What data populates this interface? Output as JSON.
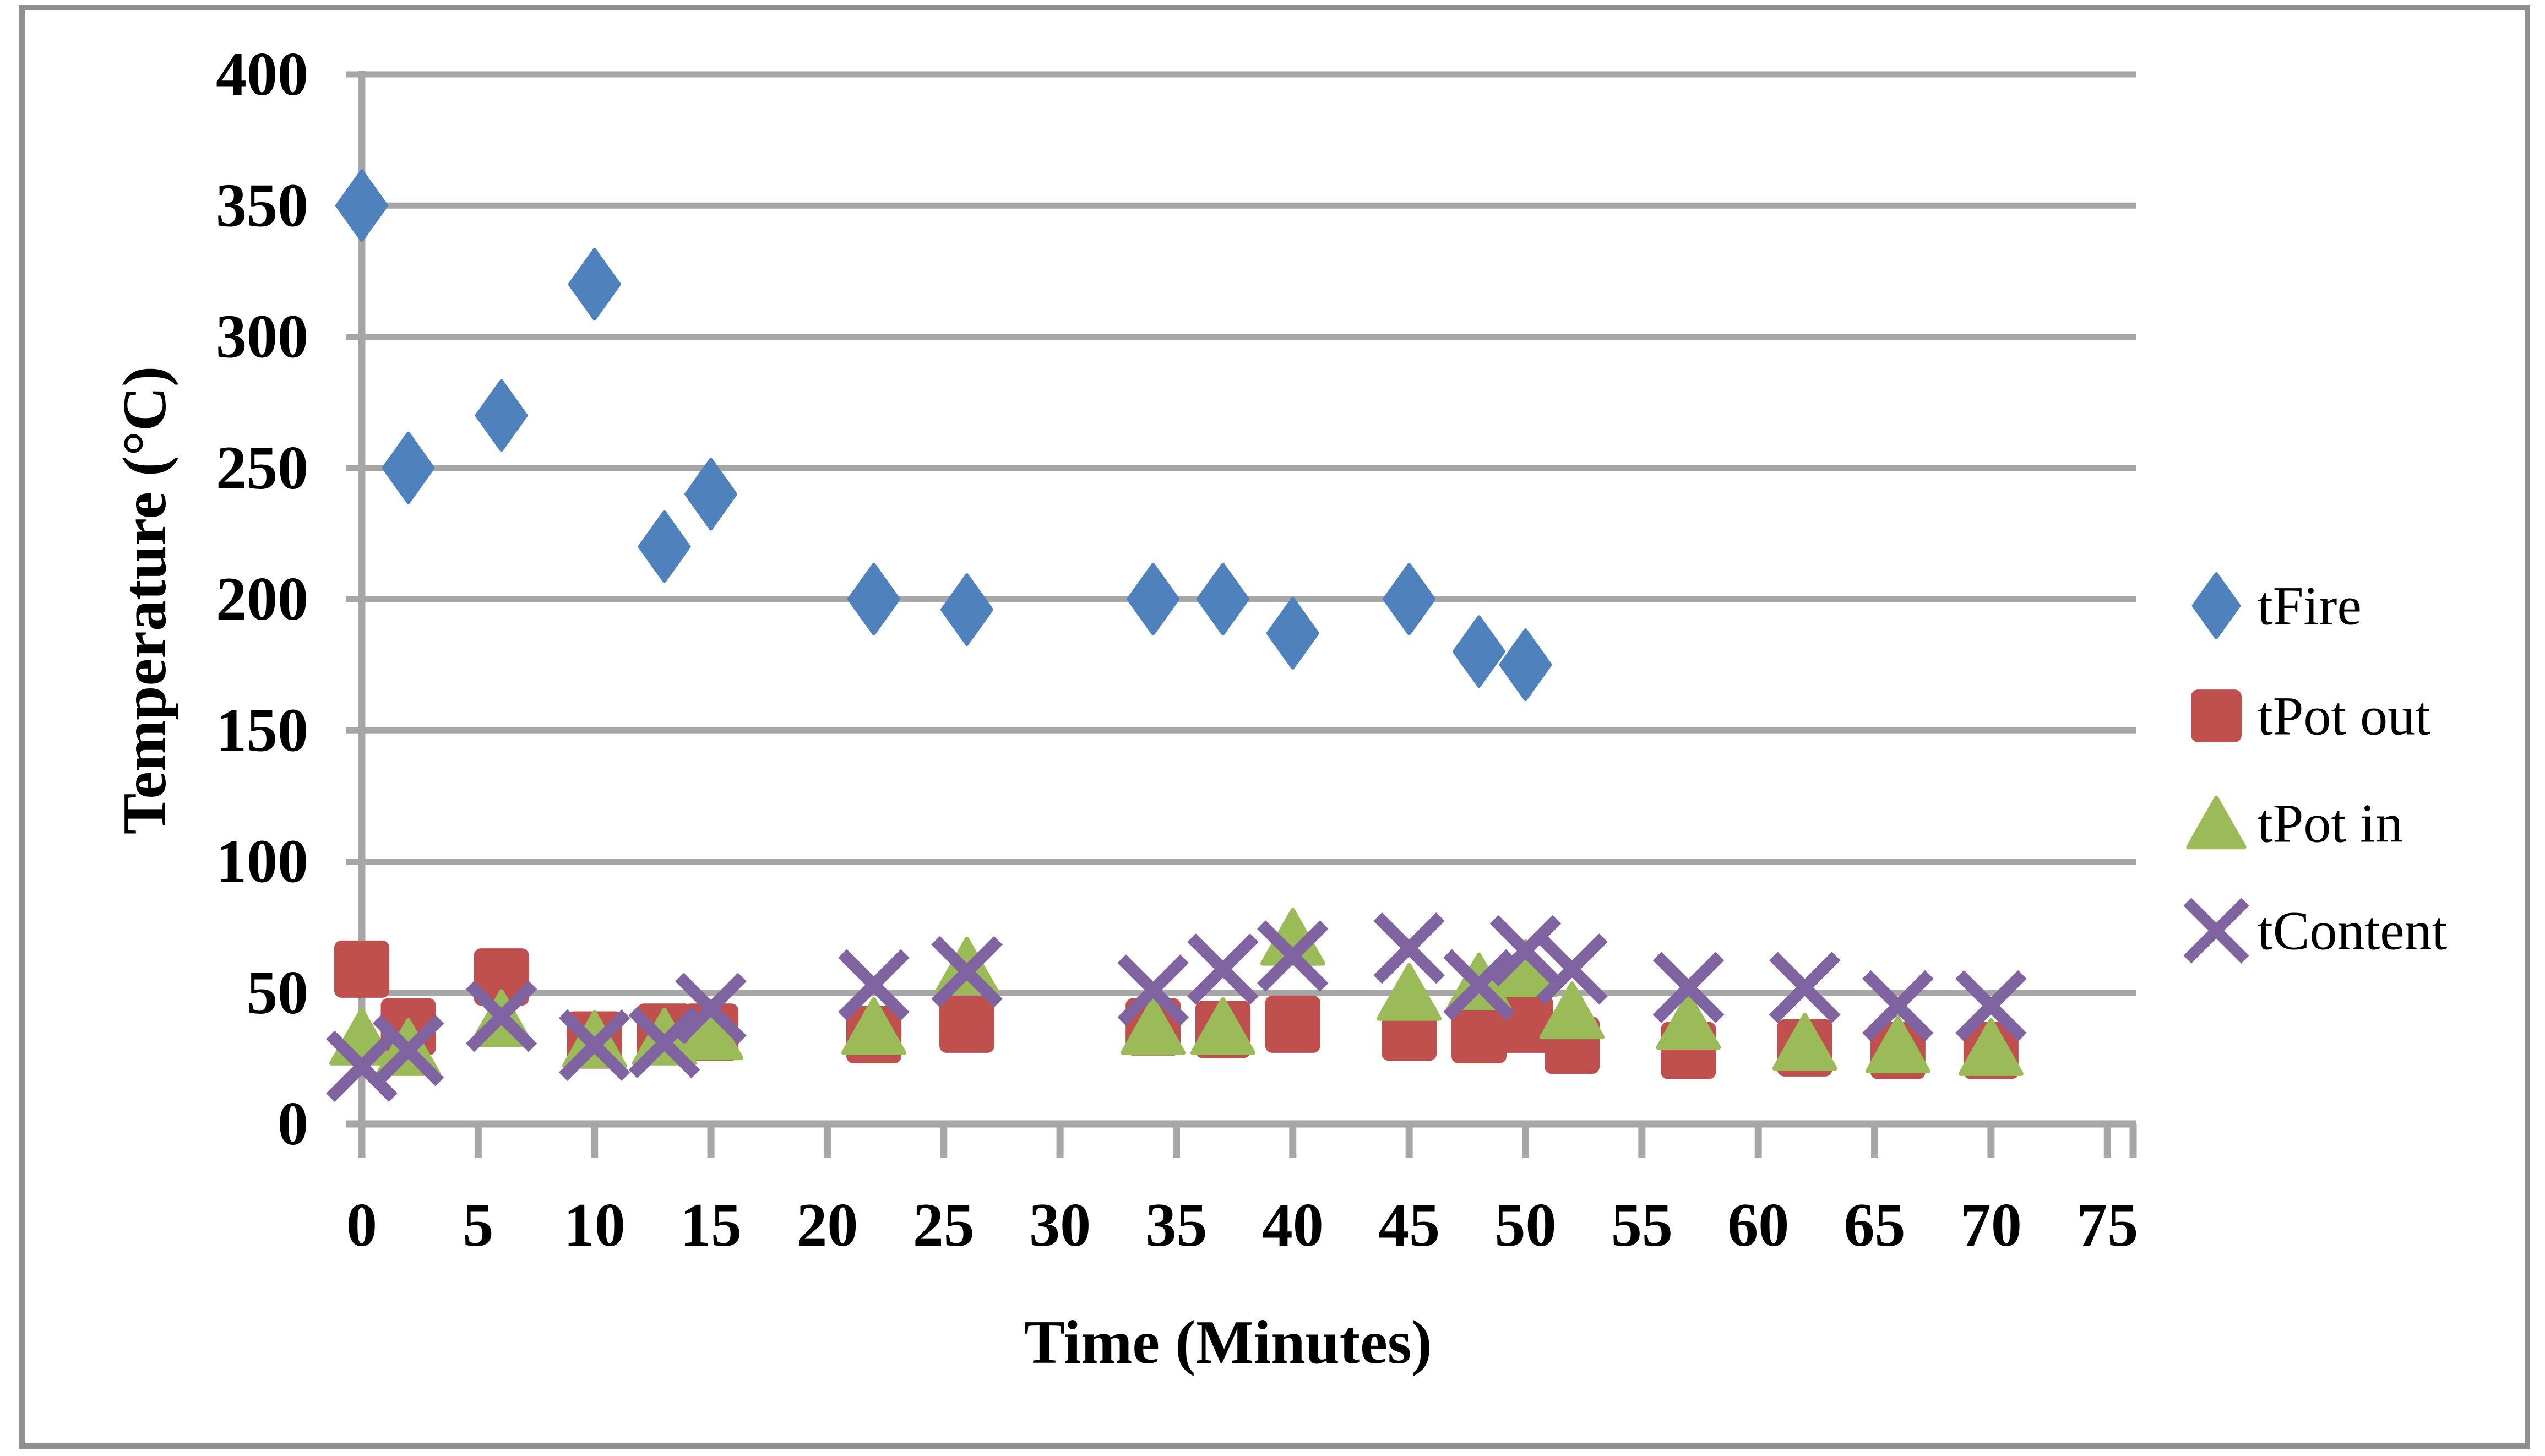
{
  "chart_data": {
    "type": "scatter",
    "title": "",
    "xlabel": "Time (Minutes)",
    "ylabel": "Temperature (°C)",
    "xlim": [
      0,
      75
    ],
    "ylim": [
      0,
      400
    ],
    "x_ticks": [
      0,
      5,
      10,
      15,
      20,
      25,
      30,
      35,
      40,
      45,
      50,
      55,
      60,
      65,
      70,
      75
    ],
    "y_ticks": [
      0,
      50,
      100,
      150,
      200,
      250,
      300,
      350,
      400
    ],
    "grid": "horizontal",
    "legend_position": "right",
    "colors": {
      "grid": "#A6A6A6",
      "axis": "#A6A6A6",
      "frame": "#8F8F8F",
      "text": "#000000",
      "background": "#FFFFFF"
    },
    "series": [
      {
        "name": "tFire",
        "marker": "diamond",
        "color": "#4F81BD",
        "points": [
          [
            0,
            350
          ],
          [
            2,
            250
          ],
          [
            6,
            270
          ],
          [
            10,
            320
          ],
          [
            13,
            220
          ],
          [
            15,
            240
          ],
          [
            22,
            200
          ],
          [
            26,
            196
          ],
          [
            34,
            200
          ],
          [
            37,
            200
          ],
          [
            40,
            187
          ],
          [
            45,
            200
          ],
          [
            48,
            180
          ],
          [
            50,
            175
          ]
        ]
      },
      {
        "name": "tPot out",
        "marker": "square",
        "color": "#C0504D",
        "points": [
          [
            0,
            59
          ],
          [
            2,
            37
          ],
          [
            6,
            56
          ],
          [
            10,
            32
          ],
          [
            13,
            35
          ],
          [
            15,
            35
          ],
          [
            22,
            34
          ],
          [
            26,
            38
          ],
          [
            34,
            37
          ],
          [
            37,
            36
          ],
          [
            40,
            38
          ],
          [
            45,
            35
          ],
          [
            48,
            34
          ],
          [
            50,
            38
          ],
          [
            52,
            30
          ],
          [
            57,
            28
          ],
          [
            62,
            29
          ],
          [
            66,
            28
          ],
          [
            70,
            28
          ]
        ]
      },
      {
        "name": "tPot in",
        "marker": "triangle",
        "color": "#9BBB59",
        "points": [
          [
            0,
            33
          ],
          [
            2,
            29
          ],
          [
            6,
            40
          ],
          [
            10,
            32
          ],
          [
            13,
            33
          ],
          [
            15,
            35
          ],
          [
            22,
            37
          ],
          [
            26,
            60
          ],
          [
            34,
            37
          ],
          [
            37,
            37
          ],
          [
            40,
            71
          ],
          [
            45,
            50
          ],
          [
            48,
            54
          ],
          [
            50,
            59
          ],
          [
            52,
            43
          ],
          [
            57,
            39
          ],
          [
            62,
            31
          ],
          [
            66,
            30
          ],
          [
            70,
            29
          ]
        ]
      },
      {
        "name": "tContent",
        "marker": "x",
        "color": "#8064A2",
        "points": [
          [
            0,
            22
          ],
          [
            2,
            28
          ],
          [
            6,
            41
          ],
          [
            10,
            30
          ],
          [
            13,
            31
          ],
          [
            15,
            44
          ],
          [
            22,
            53
          ],
          [
            26,
            58
          ],
          [
            34,
            51
          ],
          [
            37,
            59
          ],
          [
            40,
            64
          ],
          [
            45,
            67
          ],
          [
            48,
            53
          ],
          [
            50,
            66
          ],
          [
            52,
            59
          ],
          [
            57,
            52
          ],
          [
            62,
            52
          ],
          [
            66,
            45
          ],
          [
            70,
            45
          ]
        ]
      }
    ]
  }
}
